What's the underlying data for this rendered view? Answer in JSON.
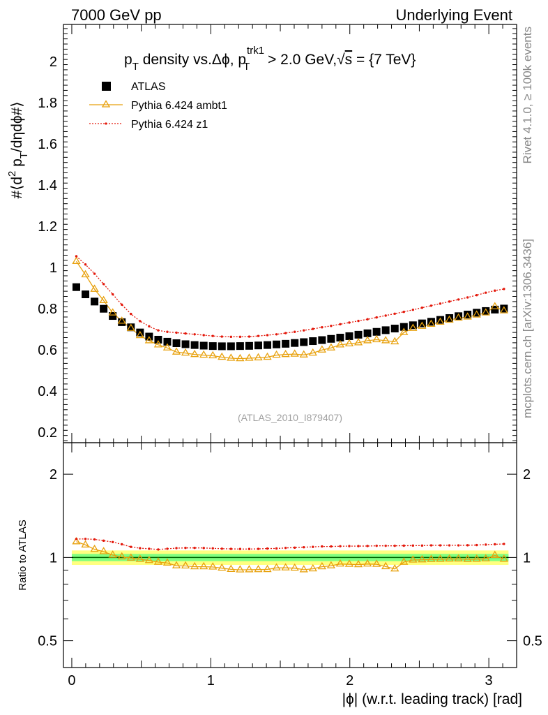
{
  "header": {
    "left_label": "7000 GeV pp",
    "right_label": "Underlying Event"
  },
  "side": {
    "rivet": "Rivet 4.1.0, ≥ 100k events",
    "mcplots": "mcplots.cern.ch [arXiv:1306.3436]"
  },
  "chart_data": [
    {
      "type": "scatter",
      "panel": "main",
      "title_parts": {
        "pT": "p",
        "pT_sub": "T",
        "mid": " density vs.Δϕ, p",
        "trk_sup": "trk1",
        "trk_sub": "T",
        "cut": " > 2.0 GeV,",
        "sqrt": "√",
        "s": "s",
        "energy": " = {7 TeV}"
      },
      "ylabel_parts": {
        "a": "#⟨d",
        "sup2": "2",
        "b": " p",
        "sub": "T",
        "c": "/dηdϕ#⟩"
      },
      "analysis_label": "(ATLAS_2010_I879407)",
      "xlim": [
        -0.06,
        3.2
      ],
      "ylim": [
        0.15,
        2.18
      ],
      "yticks": [
        "0.2",
        "0.4",
        "0.6",
        "0.8",
        "1",
        "1.2",
        "1.4",
        "1.6",
        "1.8",
        "2"
      ],
      "x": [
        0.0327,
        0.0982,
        0.1636,
        0.229,
        0.2945,
        0.3599,
        0.4254,
        0.4909,
        0.5563,
        0.6218,
        0.6872,
        0.7527,
        0.8181,
        0.8836,
        0.949,
        1.0145,
        1.0799,
        1.1454,
        1.2108,
        1.2763,
        1.3417,
        1.4072,
        1.4726,
        1.5381,
        1.6035,
        1.669,
        1.7344,
        1.7999,
        1.8653,
        1.9308,
        1.9962,
        2.0617,
        2.1271,
        2.1926,
        2.258,
        2.3235,
        2.3889,
        2.4544,
        2.5198,
        2.5853,
        2.6507,
        2.7162,
        2.7816,
        2.8471,
        2.9125,
        2.978,
        3.0434,
        3.1089
      ],
      "series": [
        {
          "name": "ATLAS",
          "color": "#000000",
          "marker": "square",
          "values": [
            0.905,
            0.87,
            0.835,
            0.8,
            0.765,
            0.735,
            0.71,
            0.685,
            0.665,
            0.65,
            0.64,
            0.633,
            0.628,
            0.624,
            0.621,
            0.619,
            0.618,
            0.618,
            0.619,
            0.62,
            0.622,
            0.624,
            0.627,
            0.63,
            0.634,
            0.638,
            0.643,
            0.648,
            0.654,
            0.66,
            0.667,
            0.674,
            0.681,
            0.688,
            0.696,
            0.704,
            0.712,
            0.72,
            0.729,
            0.737,
            0.746,
            0.755,
            0.764,
            0.772,
            0.781,
            0.789,
            0.796,
            0.801
          ]
        },
        {
          "name": "Pythia 6.424 ambt1",
          "color": "#e8a10d",
          "marker": "triangle",
          "values": [
            1.03,
            0.965,
            0.895,
            0.84,
            0.78,
            0.74,
            0.705,
            0.67,
            0.645,
            0.625,
            0.61,
            0.59,
            0.585,
            0.578,
            0.575,
            0.572,
            0.565,
            0.56,
            0.558,
            0.56,
            0.562,
            0.565,
            0.575,
            0.578,
            0.58,
            0.576,
            0.585,
            0.6,
            0.61,
            0.625,
            0.63,
            0.635,
            0.645,
            0.65,
            0.645,
            0.64,
            0.685,
            0.705,
            0.715,
            0.725,
            0.735,
            0.745,
            0.755,
            0.76,
            0.77,
            0.78,
            0.81,
            0.79
          ]
        },
        {
          "name": "Pythia 6.424 z1",
          "color": "#e3170a",
          "marker": "star",
          "values": [
            1.055,
            1.015,
            0.97,
            0.92,
            0.87,
            0.82,
            0.775,
            0.74,
            0.715,
            0.695,
            0.688,
            0.684,
            0.68,
            0.676,
            0.672,
            0.668,
            0.665,
            0.664,
            0.664,
            0.665,
            0.668,
            0.672,
            0.676,
            0.682,
            0.688,
            0.695,
            0.702,
            0.71,
            0.717,
            0.725,
            0.733,
            0.741,
            0.749,
            0.758,
            0.767,
            0.776,
            0.785,
            0.795,
            0.805,
            0.815,
            0.825,
            0.835,
            0.845,
            0.855,
            0.866,
            0.878,
            0.888,
            0.896
          ]
        }
      ]
    },
    {
      "type": "scatter",
      "panel": "ratio",
      "ylabel": "Ratio to ATLAS",
      "xlabel": "|ϕ| (w.r.t. leading track) [rad]",
      "xlim": [
        -0.06,
        3.2
      ],
      "ylim": [
        0.4,
        2.6
      ],
      "yscale": "log",
      "xticks": [
        "0",
        "1",
        "2",
        "3"
      ],
      "yticks": [
        "0.5",
        "1",
        "2"
      ],
      "band_inner": [
        0.97,
        1.03
      ],
      "band_outer": [
        0.94,
        1.06
      ],
      "band_colors": {
        "inner": "#80ff80",
        "outer": "#ffff80",
        "line": "#006600"
      },
      "series": [
        {
          "name": "Pythia 6.424 ambt1",
          "color": "#e8a10d",
          "values": [
            1.14,
            1.11,
            1.07,
            1.05,
            1.02,
            1.005,
            0.995,
            0.985,
            0.975,
            0.962,
            0.955,
            0.933,
            0.932,
            0.926,
            0.926,
            0.924,
            0.915,
            0.906,
            0.902,
            0.903,
            0.904,
            0.905,
            0.917,
            0.917,
            0.915,
            0.903,
            0.91,
            0.926,
            0.933,
            0.947,
            0.945,
            0.942,
            0.947,
            0.945,
            0.927,
            0.909,
            0.962,
            0.979,
            0.981,
            0.984,
            0.985,
            0.987,
            0.988,
            0.984,
            0.986,
            0.989,
            1.018,
            0.986
          ]
        },
        {
          "name": "Pythia 6.424 z1",
          "color": "#e3170a",
          "values": [
            1.166,
            1.167,
            1.162,
            1.15,
            1.137,
            1.116,
            1.092,
            1.08,
            1.075,
            1.069,
            1.075,
            1.081,
            1.083,
            1.083,
            1.082,
            1.079,
            1.076,
            1.074,
            1.073,
            1.073,
            1.074,
            1.077,
            1.078,
            1.083,
            1.085,
            1.089,
            1.092,
            1.096,
            1.096,
            1.098,
            1.099,
            1.099,
            1.1,
            1.102,
            1.102,
            1.102,
            1.103,
            1.104,
            1.104,
            1.106,
            1.106,
            1.106,
            1.106,
            1.107,
            1.109,
            1.113,
            1.116,
            1.119
          ]
        }
      ]
    }
  ]
}
